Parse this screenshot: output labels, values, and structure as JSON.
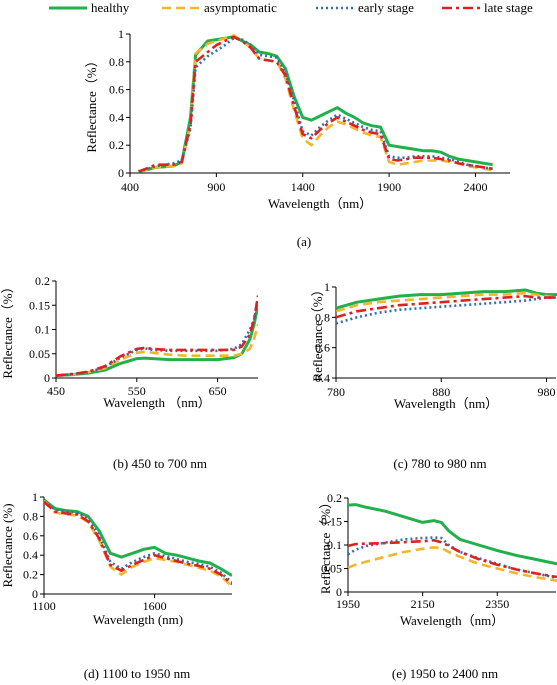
{
  "series_styles": [
    {
      "name": "healthy",
      "color": "#22b04b",
      "dash": "",
      "width": 3.0
    },
    {
      "name": "asymptomatic",
      "color": "#f5b52a",
      "dash": "9,5",
      "width": 2.6
    },
    {
      "name": "early stage",
      "color": "#2f6fb6",
      "dash": "2,3",
      "width": 2.6
    },
    {
      "name": "late stage",
      "color": "#e02020",
      "dash": "10,4,3,4",
      "width": 2.6
    }
  ],
  "chart_data": [
    {
      "id": "a",
      "type": "line",
      "caption": "(a)",
      "xlabel": "Wavelength（nm）",
      "ylabel": "Reflectance（%）",
      "xlim": [
        400,
        2600
      ],
      "ylim": [
        0,
        1
      ],
      "xticks": [
        400,
        900,
        1400,
        1900,
        2400
      ],
      "yticks": [
        0,
        0.2,
        0.4,
        0.6,
        0.8,
        1
      ],
      "ytick_labels": [
        "0",
        "0.2",
        "0.4",
        "0.6",
        "0.8",
        "1"
      ],
      "x": [
        450,
        550,
        650,
        700,
        750,
        780,
        850,
        900,
        950,
        1000,
        1050,
        1100,
        1150,
        1200,
        1250,
        1300,
        1350,
        1400,
        1450,
        1500,
        1550,
        1600,
        1650,
        1700,
        1750,
        1800,
        1850,
        1900,
        1950,
        2000,
        2050,
        2100,
        2150,
        2200,
        2250,
        2300,
        2350,
        2400,
        2450,
        2500
      ],
      "series": [
        {
          "name": "healthy",
          "values": [
            0.01,
            0.04,
            0.05,
            0.08,
            0.4,
            0.85,
            0.95,
            0.96,
            0.97,
            0.98,
            0.95,
            0.92,
            0.87,
            0.86,
            0.84,
            0.75,
            0.55,
            0.4,
            0.38,
            0.41,
            0.44,
            0.47,
            0.43,
            0.4,
            0.36,
            0.34,
            0.33,
            0.2,
            0.19,
            0.18,
            0.17,
            0.16,
            0.16,
            0.15,
            0.12,
            0.1,
            0.09,
            0.08,
            0.07,
            0.06
          ]
        },
        {
          "name": "asymptomatic",
          "values": [
            0.01,
            0.04,
            0.05,
            0.07,
            0.35,
            0.86,
            0.93,
            0.95,
            0.97,
            0.99,
            0.95,
            0.9,
            0.82,
            0.81,
            0.8,
            0.68,
            0.45,
            0.25,
            0.2,
            0.27,
            0.33,
            0.37,
            0.35,
            0.32,
            0.29,
            0.27,
            0.26,
            0.08,
            0.06,
            0.07,
            0.08,
            0.09,
            0.09,
            0.09,
            0.08,
            0.07,
            0.05,
            0.04,
            0.03,
            0.02
          ]
        },
        {
          "name": "early stage",
          "values": [
            0.01,
            0.05,
            0.07,
            0.09,
            0.32,
            0.76,
            0.84,
            0.88,
            0.92,
            0.97,
            0.96,
            0.92,
            0.85,
            0.84,
            0.83,
            0.72,
            0.52,
            0.3,
            0.27,
            0.33,
            0.38,
            0.42,
            0.39,
            0.36,
            0.33,
            0.31,
            0.3,
            0.12,
            0.11,
            0.11,
            0.12,
            0.12,
            0.12,
            0.11,
            0.1,
            0.08,
            0.06,
            0.05,
            0.04,
            0.03
          ]
        },
        {
          "name": "late stage",
          "values": [
            0.01,
            0.06,
            0.06,
            0.08,
            0.35,
            0.8,
            0.87,
            0.92,
            0.95,
            0.98,
            0.95,
            0.9,
            0.82,
            0.81,
            0.8,
            0.7,
            0.48,
            0.28,
            0.25,
            0.31,
            0.36,
            0.4,
            0.37,
            0.34,
            0.31,
            0.29,
            0.28,
            0.1,
            0.09,
            0.1,
            0.11,
            0.11,
            0.11,
            0.1,
            0.09,
            0.07,
            0.06,
            0.05,
            0.04,
            0.03
          ]
        }
      ]
    },
    {
      "id": "b",
      "type": "line",
      "caption": "(b) 450 to 700 nm",
      "xlabel": "Wavelength （nm）",
      "ylabel": "Reflectance（%）",
      "xlim": [
        450,
        700
      ],
      "ylim": [
        0,
        0.2
      ],
      "xticks": [
        450,
        550,
        650
      ],
      "yticks": [
        0,
        0.05,
        0.1,
        0.15,
        0.2
      ],
      "ytick_labels": [
        "0",
        "0.05",
        "0.1",
        "0.15",
        "0.2"
      ],
      "x": [
        450,
        470,
        490,
        510,
        530,
        550,
        560,
        570,
        590,
        610,
        630,
        650,
        670,
        680,
        690,
        695,
        700
      ],
      "series": [
        {
          "name": "healthy",
          "values": [
            0.005,
            0.007,
            0.01,
            0.016,
            0.03,
            0.04,
            0.041,
            0.04,
            0.038,
            0.038,
            0.038,
            0.038,
            0.042,
            0.05,
            0.08,
            0.11,
            0.15
          ]
        },
        {
          "name": "asymptomatic",
          "values": [
            0.005,
            0.007,
            0.012,
            0.02,
            0.038,
            0.052,
            0.054,
            0.052,
            0.048,
            0.046,
            0.046,
            0.046,
            0.046,
            0.05,
            0.06,
            0.08,
            0.11
          ]
        },
        {
          "name": "early stage",
          "values": [
            0.005,
            0.008,
            0.012,
            0.022,
            0.042,
            0.058,
            0.061,
            0.058,
            0.056,
            0.056,
            0.056,
            0.056,
            0.06,
            0.07,
            0.1,
            0.12,
            0.16
          ]
        },
        {
          "name": "late stage",
          "values": [
            0.005,
            0.008,
            0.013,
            0.024,
            0.045,
            0.06,
            0.062,
            0.06,
            0.058,
            0.058,
            0.058,
            0.058,
            0.058,
            0.065,
            0.09,
            0.12,
            0.17
          ]
        }
      ]
    },
    {
      "id": "c",
      "type": "line",
      "caption": "(c) 780 to 980 nm",
      "xlabel": "Wavelength（nm）",
      "ylabel": "Reflectance（%）",
      "xlim": [
        780,
        990
      ],
      "ylim": [
        0.4,
        1
      ],
      "xticks": [
        780,
        880,
        980
      ],
      "yticks": [
        0.4,
        0.6,
        0.8,
        1
      ],
      "ytick_labels": [
        "0.4",
        "0.6",
        "0.8",
        "1"
      ],
      "x": [
        780,
        800,
        820,
        840,
        860,
        880,
        900,
        920,
        940,
        960,
        970,
        980,
        990
      ],
      "series": [
        {
          "name": "healthy",
          "values": [
            0.86,
            0.9,
            0.92,
            0.94,
            0.95,
            0.95,
            0.96,
            0.97,
            0.97,
            0.98,
            0.96,
            0.95,
            0.95
          ]
        },
        {
          "name": "asymptomatic",
          "values": [
            0.84,
            0.88,
            0.9,
            0.91,
            0.92,
            0.93,
            0.94,
            0.95,
            0.95,
            0.96,
            0.95,
            0.94,
            0.93
          ]
        },
        {
          "name": "early stage",
          "values": [
            0.76,
            0.8,
            0.83,
            0.85,
            0.86,
            0.87,
            0.88,
            0.89,
            0.9,
            0.91,
            0.92,
            0.93,
            0.93
          ]
        },
        {
          "name": "late stage",
          "values": [
            0.8,
            0.84,
            0.86,
            0.88,
            0.89,
            0.9,
            0.91,
            0.92,
            0.93,
            0.94,
            0.93,
            0.93,
            0.93
          ]
        }
      ]
    },
    {
      "id": "d",
      "type": "line",
      "caption": "(d) 1100 to 1950 nm",
      "xlabel": "Wavelength (nm)",
      "ylabel": "Reflectance (%)",
      "xlim": [
        1100,
        1950
      ],
      "ylim": [
        0,
        1
      ],
      "xticks": [
        1100,
        1600
      ],
      "yticks": [
        0,
        0.2,
        0.4,
        0.6,
        0.8,
        1
      ],
      "ytick_labels": [
        "0",
        "0.2",
        "0.4",
        "0.6",
        "0.8",
        "1"
      ],
      "x": [
        1100,
        1150,
        1200,
        1250,
        1300,
        1350,
        1400,
        1450,
        1500,
        1550,
        1600,
        1650,
        1700,
        1750,
        1800,
        1850,
        1900,
        1950
      ],
      "series": [
        {
          "name": "healthy",
          "values": [
            0.97,
            0.88,
            0.86,
            0.85,
            0.8,
            0.65,
            0.42,
            0.38,
            0.42,
            0.46,
            0.48,
            0.42,
            0.4,
            0.37,
            0.34,
            0.32,
            0.26,
            0.19
          ]
        },
        {
          "name": "asymptomatic",
          "values": [
            0.96,
            0.84,
            0.82,
            0.81,
            0.74,
            0.55,
            0.28,
            0.2,
            0.28,
            0.33,
            0.37,
            0.35,
            0.33,
            0.3,
            0.27,
            0.24,
            0.18,
            0.08
          ]
        },
        {
          "name": "early stage",
          "values": [
            0.95,
            0.87,
            0.85,
            0.84,
            0.77,
            0.6,
            0.33,
            0.26,
            0.33,
            0.38,
            0.42,
            0.39,
            0.36,
            0.33,
            0.31,
            0.28,
            0.22,
            0.12
          ]
        },
        {
          "name": "late stage",
          "values": [
            0.95,
            0.85,
            0.83,
            0.82,
            0.75,
            0.57,
            0.3,
            0.24,
            0.3,
            0.35,
            0.4,
            0.37,
            0.34,
            0.31,
            0.29,
            0.26,
            0.2,
            0.1
          ]
        }
      ]
    },
    {
      "id": "e",
      "type": "line",
      "caption": "(e) 1950 to 2400 nm",
      "xlabel": "Wavelength（nm）",
      "ylabel": "Reflectance（%）",
      "xlim": [
        1950,
        2510
      ],
      "ylim": [
        0,
        0.2
      ],
      "xticks": [
        1950,
        2150,
        2350
      ],
      "yticks": [
        0,
        0.05,
        0.1,
        0.15,
        0.2
      ],
      "ytick_labels": [
        "0",
        "0.05",
        "0.1",
        "0.15",
        "0.2"
      ],
      "x": [
        1950,
        1970,
        2000,
        2050,
        2100,
        2150,
        2180,
        2200,
        2220,
        2250,
        2300,
        2350,
        2400,
        2450,
        2480,
        2510
      ],
      "series": [
        {
          "name": "healthy",
          "values": [
            0.185,
            0.186,
            0.18,
            0.172,
            0.16,
            0.148,
            0.152,
            0.148,
            0.13,
            0.112,
            0.1,
            0.088,
            0.078,
            0.07,
            0.065,
            0.06
          ]
        },
        {
          "name": "asymptomatic",
          "values": [
            0.052,
            0.058,
            0.065,
            0.075,
            0.085,
            0.092,
            0.095,
            0.094,
            0.085,
            0.075,
            0.06,
            0.05,
            0.04,
            0.032,
            0.028,
            0.024
          ]
        },
        {
          "name": "early stage",
          "values": [
            0.08,
            0.09,
            0.098,
            0.105,
            0.112,
            0.115,
            0.116,
            0.115,
            0.1,
            0.085,
            0.072,
            0.06,
            0.048,
            0.04,
            0.035,
            0.03
          ]
        },
        {
          "name": "late stage",
          "values": [
            0.098,
            0.102,
            0.103,
            0.104,
            0.106,
            0.108,
            0.11,
            0.106,
            0.098,
            0.085,
            0.07,
            0.058,
            0.048,
            0.04,
            0.036,
            0.032
          ]
        }
      ]
    }
  ],
  "legend": [
    "healthy",
    "asymptomatic",
    "early stage",
    "late stage"
  ]
}
